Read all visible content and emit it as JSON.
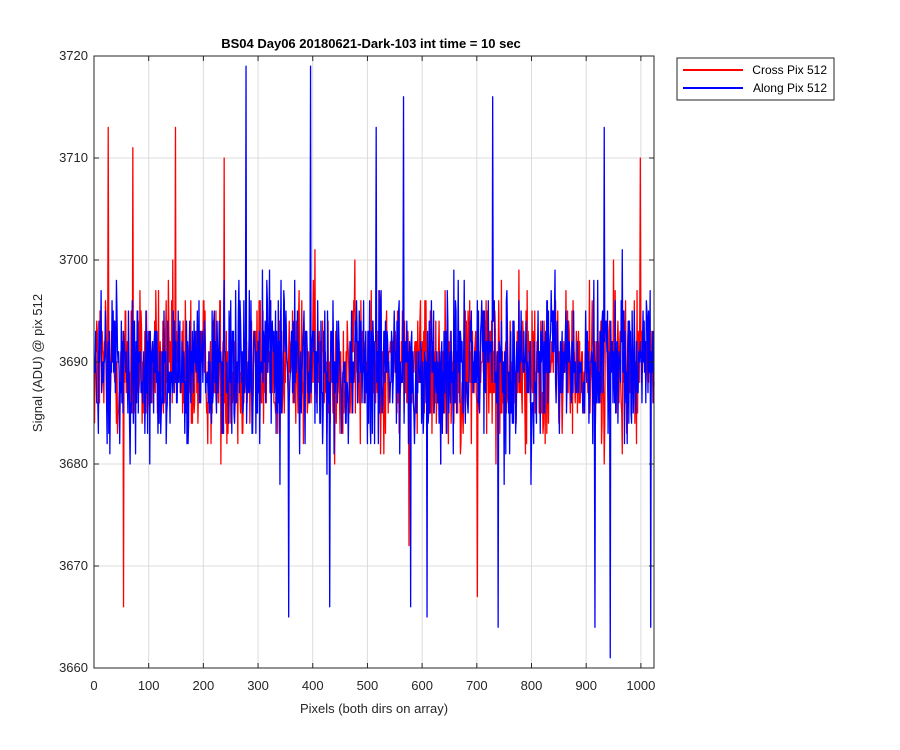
{
  "chart_data": {
    "type": "line",
    "title": "BS04 Day06 20180621-Dark-103 int time = 10 sec",
    "xlabel": "Pixels (both dirs on array)",
    "ylabel": "Signal (ADU) @ pix 512",
    "xlim": [
      0,
      1024
    ],
    "ylim": [
      3660,
      3720
    ],
    "xticks": [
      0,
      100,
      200,
      300,
      400,
      500,
      600,
      700,
      800,
      900,
      1000
    ],
    "yticks": [
      3660,
      3670,
      3680,
      3690,
      3700,
      3710,
      3720
    ],
    "xtick_labels": [
      "0",
      "100",
      "200",
      "300",
      "400",
      "500",
      "600",
      "700",
      "800",
      "900",
      "1000"
    ],
    "ytick_labels": [
      "3660",
      "3670",
      "3680",
      "3690",
      "3700",
      "3710",
      "3720"
    ],
    "grid": true,
    "legend_position": "outside top-right",
    "noise_model": {
      "mean": 3689.5,
      "spread": 7.5,
      "seeds": [
        12345,
        67891
      ]
    },
    "series": [
      {
        "name": "Cross Pix 512",
        "color": "#ff0000",
        "n_points": 1024,
        "extremes": [
          [
            25,
            3713
          ],
          [
            53,
            3666
          ],
          [
            70,
            3711
          ],
          [
            148,
            3713
          ],
          [
            237,
            3710
          ],
          [
            575,
            3672
          ],
          [
            700,
            3667
          ],
          [
            998,
            3710
          ]
        ]
      },
      {
        "name": "Along Pix 512",
        "color": "#0000ff",
        "n_points": 1024,
        "extremes": [
          [
            277,
            3719
          ],
          [
            355,
            3665
          ],
          [
            395,
            3719
          ],
          [
            430,
            3666
          ],
          [
            515,
            3713
          ],
          [
            565,
            3716
          ],
          [
            578,
            3666
          ],
          [
            608,
            3665
          ],
          [
            728,
            3716
          ],
          [
            738,
            3664
          ],
          [
            915,
            3664
          ],
          [
            932,
            3713
          ],
          [
            943,
            3661
          ],
          [
            1017,
            3664
          ]
        ]
      }
    ]
  }
}
